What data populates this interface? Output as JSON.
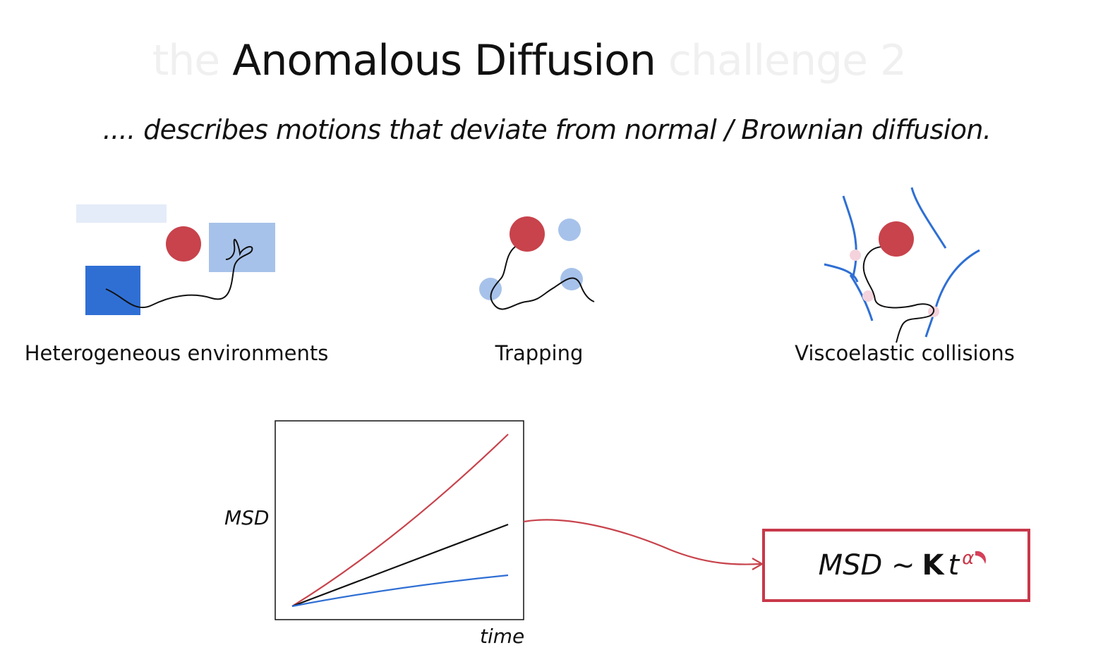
{
  "title": {
    "prefix": "the",
    "main": "Anomalous Diffusion",
    "suffix": "challenge 2"
  },
  "subtitle": ".... describes motions that deviate from normal / Brownian diffusion.",
  "mechanisms": [
    {
      "label": "Heterogeneous environments"
    },
    {
      "label": "Trapping"
    },
    {
      "label": "Viscoelastic collisions"
    }
  ],
  "plot": {
    "ylabel": "MSD",
    "xlabel": "time"
  },
  "formula": {
    "lhs": "MSD ~",
    "coefficient": "K",
    "variable": "t",
    "exponent": "α"
  },
  "colors": {
    "red": "#c8434c",
    "blue": "#2f6fd4",
    "light_blue": "#a7c2ea",
    "pale_blue": "#e4ecf9",
    "black": "#111111",
    "box_border": "#c8384a"
  }
}
